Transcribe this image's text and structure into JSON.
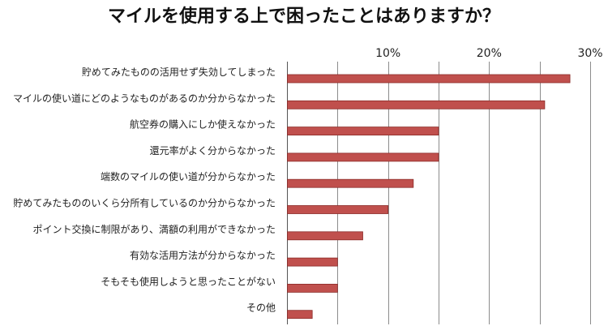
{
  "chart_data": {
    "type": "bar",
    "orientation": "horizontal",
    "title": "マイルを使用する上で困ったことはありますか？",
    "categories": [
      "貯めてみたものの活用せず失効してしまった",
      "マイルの使い道にどのようなものがあるのか分からなかった",
      "航空券の購入にしか使えなかった",
      "還元率がよく分からなかった",
      "端数のマイルの使い道が分からなかった",
      "貯めてみたもののいくら分所有しているのか分からなかった",
      "ポイント交換に制限があり、満額の利用ができなかった",
      "有効な活用方法が分からなかった",
      "そもそも使用しようと思ったことがない",
      "その他"
    ],
    "values": [
      28.0,
      25.5,
      15.0,
      15.0,
      12.5,
      10.0,
      7.5,
      5.0,
      5.0,
      2.5
    ],
    "unit": "%",
    "xlim": [
      0,
      30
    ],
    "x_ticks": [
      "10%",
      "20%",
      "30%"
    ],
    "x_tick_values": [
      10,
      20,
      30
    ],
    "axis_position": "top",
    "grid": true,
    "colors": {
      "bar_fill": "#c0504d",
      "bar_stroke": "#8b2b28",
      "grid": "#8c8c8c"
    }
  }
}
